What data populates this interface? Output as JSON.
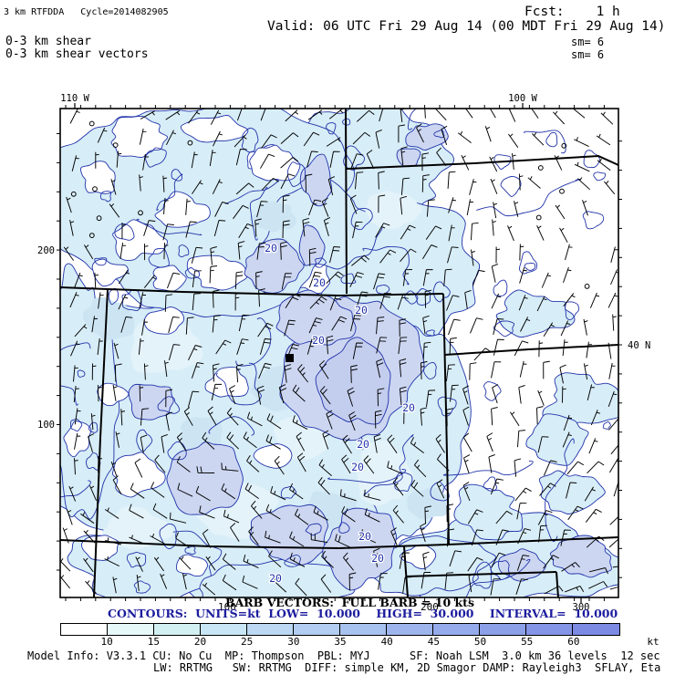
{
  "header": {
    "title": "3 km RTFDDA   Cycle=2014082905",
    "fcst": "Fcst:    1 h",
    "valid": "Valid: 06 UTC Fri 29 Aug 14 (00 MDT Fri 29 Aug 14)",
    "field1": "0-3 km shear",
    "field2": "0-3 km shear vectors",
    "sm1": "sm= 6",
    "sm2": "sm= 6"
  },
  "map": {
    "top_labels": [
      "110 W",
      "100 W"
    ],
    "left_labels": [
      "200",
      "100"
    ],
    "right_labels": [
      "40 N"
    ],
    "bottom_labels": [
      "100",
      "200",
      "300"
    ],
    "contour_label": "20",
    "station_marker": "filled-square"
  },
  "legend": {
    "barb_line": "BARB VECTORS:  FULL BARB = 10 kts",
    "contour_line": "CONTOURS:  UNITS=kt  LOW=  10.000    HIGH=  30.000    INTERVAL=  10.000"
  },
  "colorbar": {
    "values": [
      "10",
      "15",
      "20",
      "25",
      "30",
      "35",
      "40",
      "45",
      "50",
      "55",
      "60"
    ],
    "unit": "kt",
    "colors": [
      "#ffffff",
      "#e6f8f8",
      "#d2f0f2",
      "#c8e6f5",
      "#bcd8f2",
      "#b2cdf1",
      "#a8c2ef",
      "#9eb5ec",
      "#96abeb",
      "#8ca0e8",
      "#8495e6",
      "#7c8ae4"
    ]
  },
  "footer": {
    "line1": "Model Info: V3.3.1 CU: No Cu  MP: Thompson  PBL: MYJ      SF: Noah LSM  3.0 km 36 levels  12 sec",
    "line2": "LW: RRTMG   SW: RRTMG  DIFF: simple KM, 2D Smagor DAMP: Rayleigh3  SFLAY, Eta"
  },
  "map_meta": {
    "field": "0-3 km shear",
    "units": "kt",
    "contour_low": 10.0,
    "contour_high": 30.0,
    "contour_interval": 10.0,
    "full_barb_kts": 10,
    "fill_levels_kt": [
      10,
      20,
      30
    ]
  }
}
